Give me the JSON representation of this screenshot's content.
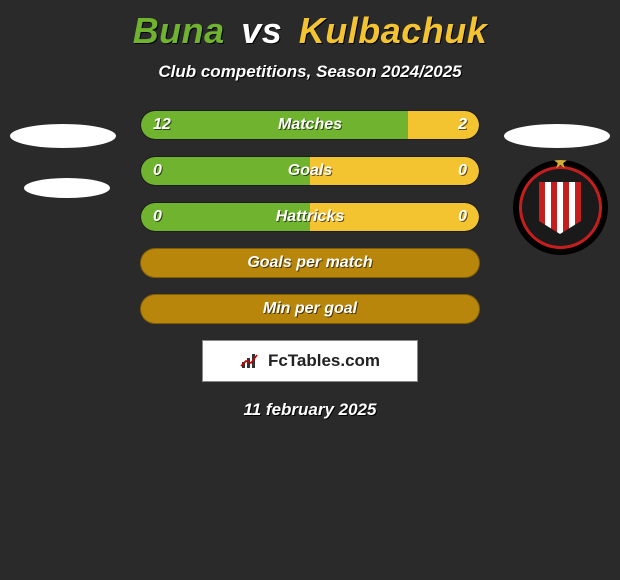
{
  "player1": {
    "name": "Buna",
    "color": "#6fb32e"
  },
  "player2": {
    "name": "Kulbachuk",
    "color": "#f4c430"
  },
  "subtitle": "Club competitions, Season 2024/2025",
  "date": "11 february 2025",
  "brand": "FcTables.com",
  "neutral_color": "#b8860b",
  "background_color": "#2a2a2a",
  "stats": [
    {
      "label": "Matches",
      "left_val": "12",
      "right_val": "2",
      "left_pct": 79,
      "right_pct": 21,
      "single": false
    },
    {
      "label": "Goals",
      "left_val": "0",
      "right_val": "0",
      "left_pct": 50,
      "right_pct": 50,
      "single": false
    },
    {
      "label": "Hattricks",
      "left_val": "0",
      "right_val": "0",
      "left_pct": 50,
      "right_pct": 50,
      "single": false
    },
    {
      "label": "Goals per match",
      "left_val": "",
      "right_val": "",
      "left_pct": 0,
      "right_pct": 0,
      "single": true
    },
    {
      "label": "Min per goal",
      "left_val": "",
      "right_val": "",
      "left_pct": 0,
      "right_pct": 0,
      "single": true
    }
  ]
}
